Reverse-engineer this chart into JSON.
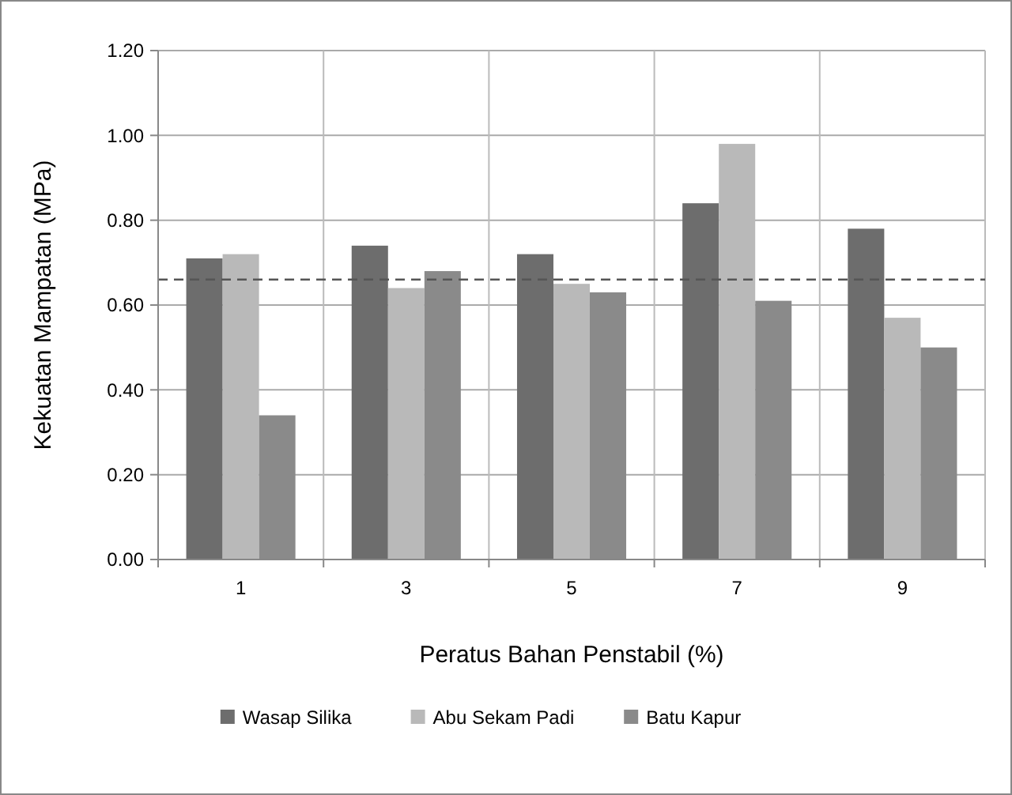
{
  "chart_data": {
    "type": "bar",
    "xlabel": "Peratus Bahan Penstabil (%)",
    "ylabel": "Kekuatan Mampatan (MPa)",
    "categories": [
      "1",
      "3",
      "5",
      "7",
      "9"
    ],
    "series": [
      {
        "name": "Wasap Silika",
        "color": "#6d6d6d",
        "values": [
          0.71,
          0.74,
          0.72,
          0.84,
          0.78
        ]
      },
      {
        "name": "Abu Sekam Padi",
        "color": "#b9b9b9",
        "values": [
          0.72,
          0.64,
          0.65,
          0.98,
          0.57
        ]
      },
      {
        "name": "Batu Kapur",
        "color": "#8a8a8a",
        "values": [
          0.34,
          0.68,
          0.63,
          0.61,
          0.5
        ]
      }
    ],
    "ylim": [
      0,
      1.2
    ],
    "yticks": [
      {
        "value": 0,
        "label": "0.00"
      },
      {
        "value": 0.2,
        "label": "0.20"
      },
      {
        "value": 0.4,
        "label": "0.40"
      },
      {
        "value": 0.6,
        "label": "0.60"
      },
      {
        "value": 0.8,
        "label": "0.80"
      },
      {
        "value": 1,
        "label": "1.00"
      },
      {
        "value": 1.2,
        "label": "1.20"
      }
    ],
    "grid": true,
    "legend": "bottom",
    "ref_lines": [
      {
        "axis": "y",
        "value": 0.66,
        "line_style": "dashed",
        "color": "#555555"
      }
    ]
  }
}
